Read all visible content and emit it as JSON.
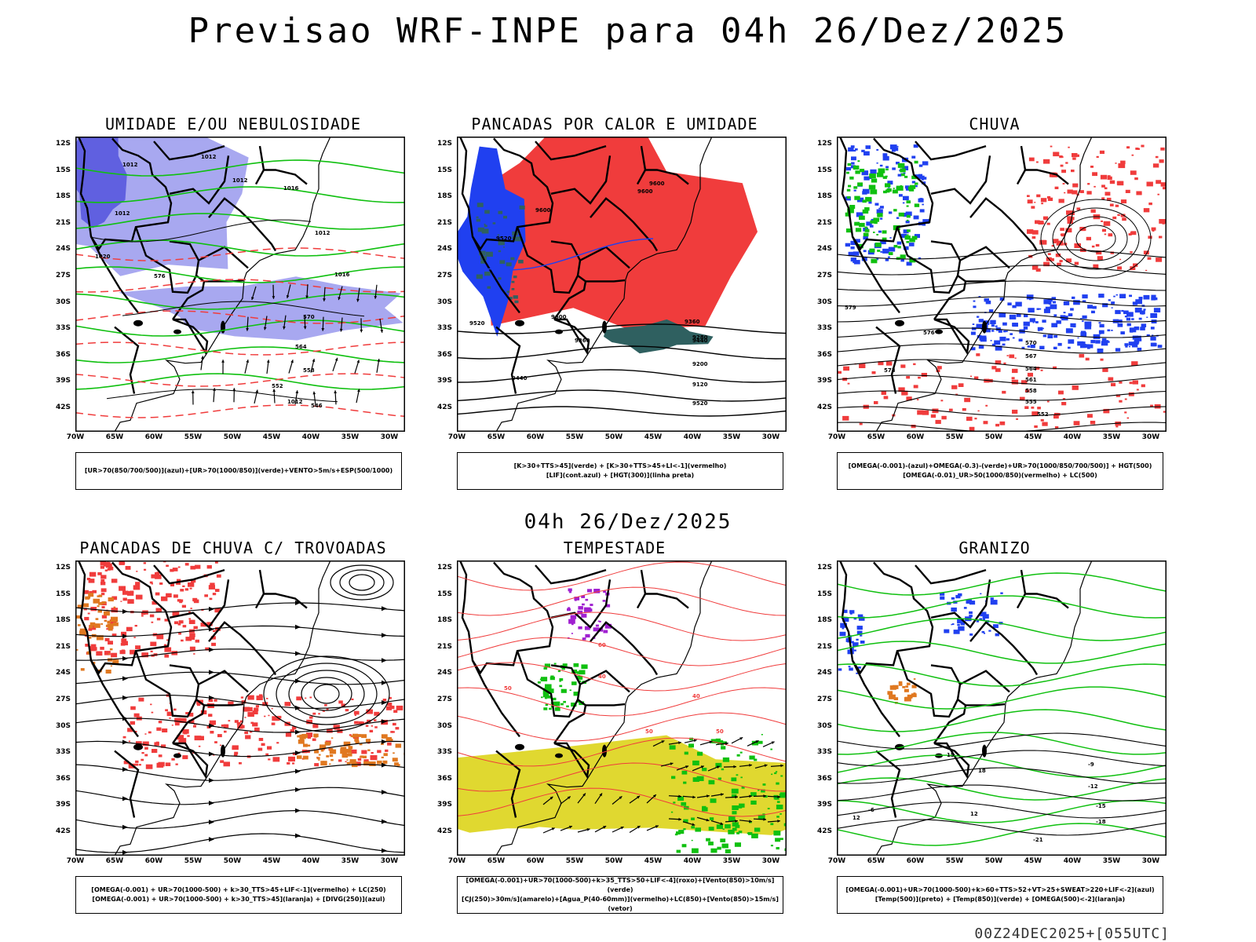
{
  "page": {
    "title": "Previsao WRF-INPE  para 04h 26/Dez/2025",
    "mid_date": "04h 26/Dez/2025",
    "run_info": "00Z24DEC2025+[055UTC]"
  },
  "axes": {
    "lat_labels": [
      "12S",
      "15S",
      "18S",
      "21S",
      "24S",
      "27S",
      "30S",
      "33S",
      "36S",
      "39S",
      "42S"
    ],
    "lon_labels": [
      "70W",
      "65W",
      "60W",
      "55W",
      "50W",
      "45W",
      "40W",
      "35W",
      "30W"
    ]
  },
  "colors": {
    "red": "#f03c3c",
    "green": "#10c010",
    "blue": "#2040f0",
    "lightblue": "#a8a8f0",
    "yellow": "#e0d830",
    "darkteal": "#2f6060",
    "orange": "#e07820",
    "purple": "#a020d0"
  },
  "panels": [
    {
      "title": "UMIDADE E/OU NEBULOSIDADE",
      "legend": [
        "[UR>70(850/700/500)](azul)+[UR>70(1000/850)](verde)+VENTO>5m/s+ESP(500/1000)"
      ],
      "contour_labels": [
        "1012",
        "1012",
        "1012",
        "1016",
        "1012",
        "1020",
        "1012",
        "1016",
        "1012",
        "570",
        "576",
        "564",
        "558",
        "552",
        "546"
      ]
    },
    {
      "title": "PANCADAS POR CALOR E UMIDADE",
      "legend": [
        "[K>30+TTS>45](verde) + [K>30+TTS>45+LI<-1](vermelho)",
        "[LIF](cont.azul) + [HGT(300)](linha preta)"
      ],
      "contour_labels": [
        "9600",
        "9600",
        "9600",
        "9520",
        "9520",
        "9600",
        "9440",
        "9360",
        "9280",
        "9200",
        "9120",
        "9520",
        "9440",
        "9360"
      ]
    },
    {
      "title": "CHUVA",
      "legend": [
        "[OMEGA(-0.001)-(azul)+OMEGA(-0.3)-(verde)+UR>70(1000/850/700/500)] + HGT(500)",
        "[OMEGA(-0.01)_UR>50(1000/850)(vermelho) + LC(500)"
      ],
      "contour_labels": [
        "579",
        "576",
        "573",
        "570",
        "567",
        "564",
        "561",
        "558",
        "555",
        "552"
      ]
    },
    {
      "title": "PANCADAS DE CHUVA C/ TROVOADAS",
      "legend": [
        "[OMEGA(-0.001) + UR>70(1000-500) + k>30_TTS>45+LIF<-1](vermelho) + LC(250)",
        "[OMEGA(-0.001) + UR>70(1000-500) + k>30_TTS>45](laranja) + [DIVG(250)](azul)"
      ],
      "contour_labels": []
    },
    {
      "title": "TEMPESTADE",
      "legend": [
        "[OMEGA(-0.001)+UR>70(1000-500)+k>35_TTS>50+LIF<-4](roxo)+[Vento(850)>10m/s](verde)",
        "[CJ(250)>30m/s](amarelo)+[Agua_P(40-60mm)](vermelho)+LC(850)+[Vento(850)>15m/s](vetor)"
      ],
      "contour_labels": [
        "50",
        "40",
        "50",
        "40",
        "60",
        "50"
      ]
    },
    {
      "title": "GRANIZO",
      "legend": [
        "[OMEGA(-0.001)+UR>70(1000-500)+k>60+TTS>52+VT>25+SWEAT>220+LIF<-2](azul)",
        "[Temp(500)](preto) + [Temp(850)](verde) + [OMEGA(500)<-2](laranja)"
      ],
      "contour_labels": [
        "-12",
        "-15",
        "-18",
        "-21",
        "-9",
        "12",
        "15",
        "18",
        "12",
        "-6"
      ]
    }
  ]
}
